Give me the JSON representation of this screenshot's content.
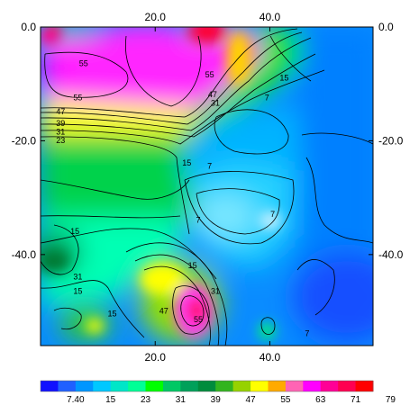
{
  "chart_data": {
    "type": "heatmap",
    "title": "",
    "xlabel": "",
    "ylabel": "",
    "x_range": [
      0,
      58
    ],
    "y_range": [
      -56,
      0
    ],
    "x_ticks": [
      {
        "value": 20,
        "label": "20.0"
      },
      {
        "value": 40,
        "label": "40.0"
      }
    ],
    "y_ticks": [
      {
        "value": 0,
        "label": "0.0"
      },
      {
        "value": -20,
        "label": "-20.0"
      },
      {
        "value": -40,
        "label": "-40.0"
      }
    ],
    "colorbar": {
      "colors": [
        "#1010ff",
        "#2060ff",
        "#0096ff",
        "#00c8ff",
        "#00e6c8",
        "#00ff96",
        "#00ff00",
        "#00c864",
        "#00a05a",
        "#008c3c",
        "#32b41e",
        "#96d200",
        "#ffff00",
        "#ffaa00",
        "#ff64b4",
        "#ff00ff",
        "#ff0096",
        "#ff0050",
        "#ff0000"
      ],
      "labels": [
        {
          "index": 2,
          "text": "7.40"
        },
        {
          "index": 4,
          "text": "15"
        },
        {
          "index": 6,
          "text": "23"
        },
        {
          "index": 8,
          "text": "31"
        },
        {
          "index": 10,
          "text": "39"
        },
        {
          "index": 12,
          "text": "47"
        },
        {
          "index": 14,
          "text": "55"
        },
        {
          "index": 16,
          "text": "63"
        },
        {
          "index": 18,
          "text": "71"
        },
        {
          "index": 20,
          "text": "79"
        }
      ]
    },
    "contour_labels": [
      {
        "text": "55",
        "x": 7.5,
        "y": -6.5
      },
      {
        "text": "55",
        "x": 6.5,
        "y": -12.5
      },
      {
        "text": "55",
        "x": 29.5,
        "y": -8.5
      },
      {
        "text": "47",
        "x": 3.5,
        "y": -15.0
      },
      {
        "text": "39",
        "x": 3.5,
        "y": -17.0
      },
      {
        "text": "31",
        "x": 3.5,
        "y": -18.5
      },
      {
        "text": "23",
        "x": 3.5,
        "y": -20.0
      },
      {
        "text": "47",
        "x": 30.0,
        "y": -12.0
      },
      {
        "text": "31",
        "x": 30.5,
        "y": -13.5
      },
      {
        "text": "7",
        "x": 39.5,
        "y": -12.5
      },
      {
        "text": "15",
        "x": 42.5,
        "y": -9.0
      },
      {
        "text": "15",
        "x": 25.5,
        "y": -24.0
      },
      {
        "text": "7",
        "x": 29.5,
        "y": -24.5
      },
      {
        "text": "7",
        "x": 27.5,
        "y": -34.0
      },
      {
        "text": "7",
        "x": 40.5,
        "y": -33.0
      },
      {
        "text": "15",
        "x": 6.0,
        "y": -36.0
      },
      {
        "text": "15",
        "x": 26.5,
        "y": -42.0
      },
      {
        "text": "31",
        "x": 6.5,
        "y": -44.0
      },
      {
        "text": "15",
        "x": 6.5,
        "y": -46.5
      },
      {
        "text": "31",
        "x": 30.5,
        "y": -46.5
      },
      {
        "text": "15",
        "x": 12.5,
        "y": -50.5
      },
      {
        "text": "47",
        "x": 21.5,
        "y": -50.0
      },
      {
        "text": "55",
        "x": 27.5,
        "y": -51.5
      },
      {
        "text": "7",
        "x": 46.5,
        "y": -54.0
      }
    ]
  }
}
